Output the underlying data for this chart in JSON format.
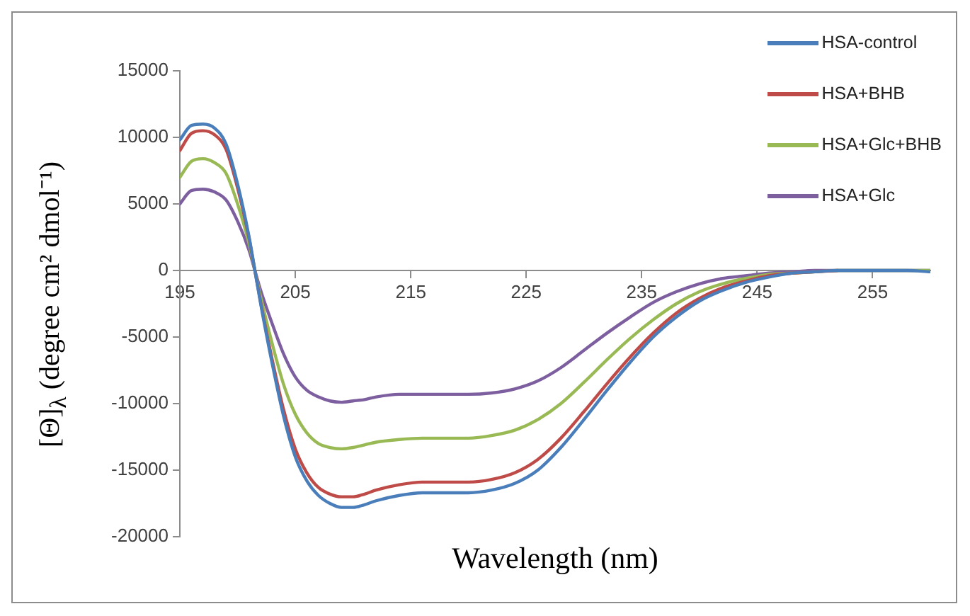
{
  "chart_data": {
    "type": "line",
    "xlabel": "Wavelength  (nm)",
    "ylabel": "[Θ]$_{λ}$ (degree cm² dmol⁻¹)",
    "x": [
      195,
      196,
      197,
      198,
      199,
      200,
      201,
      201.5,
      202,
      203,
      204,
      205,
      206,
      207,
      208,
      209,
      210,
      211,
      212,
      214,
      216,
      218,
      220,
      222,
      224,
      226,
      228,
      230,
      232,
      234,
      236,
      238,
      240,
      242,
      244,
      246,
      248,
      250,
      252,
      255,
      258,
      260
    ],
    "series": [
      {
        "name": "HSA-control",
        "color": "#4a7ebb",
        "values": [
          9800,
          10900,
          11000,
          10700,
          9500,
          6500,
          2500,
          0,
          -2500,
          -7000,
          -11000,
          -14000,
          -15800,
          -16900,
          -17500,
          -17800,
          -17800,
          -17600,
          -17300,
          -16900,
          -16700,
          -16700,
          -16700,
          -16500,
          -16000,
          -15000,
          -13300,
          -11200,
          -9000,
          -6900,
          -5000,
          -3500,
          -2300,
          -1500,
          -900,
          -500,
          -200,
          -100,
          0,
          0,
          0,
          -100
        ]
      },
      {
        "name": "HSA+BHB",
        "color": "#be4b48",
        "values": [
          9000,
          10300,
          10500,
          10200,
          9100,
          6200,
          2400,
          0,
          -2400,
          -6700,
          -10500,
          -13400,
          -15200,
          -16300,
          -16800,
          -17000,
          -17000,
          -16800,
          -16500,
          -16100,
          -15900,
          -15900,
          -15900,
          -15700,
          -15200,
          -14200,
          -12600,
          -10600,
          -8500,
          -6500,
          -4700,
          -3200,
          -2100,
          -1300,
          -800,
          -400,
          -200,
          -100,
          0,
          null,
          null,
          null
        ]
      },
      {
        "name": "HSA+Glc+BHB",
        "color": "#98b954",
        "values": [
          7000,
          8200,
          8400,
          8100,
          7300,
          5000,
          2000,
          0,
          -2000,
          -5500,
          -8600,
          -10800,
          -12200,
          -13000,
          -13300,
          -13400,
          -13300,
          -13100,
          -12900,
          -12700,
          -12600,
          -12600,
          -12600,
          -12400,
          -12000,
          -11200,
          -10000,
          -8400,
          -6700,
          -5100,
          -3700,
          -2500,
          -1600,
          -1000,
          -600,
          -300,
          -200,
          -100,
          0,
          0,
          0,
          0
        ]
      },
      {
        "name": "HSA+Glc",
        "color": "#7d5fa0",
        "values": [
          5000,
          6000,
          6100,
          5900,
          5300,
          3700,
          1500,
          0,
          -1500,
          -4000,
          -6300,
          -8000,
          -9000,
          -9500,
          -9800,
          -9900,
          -9800,
          -9700,
          -9500,
          -9300,
          -9300,
          -9300,
          -9300,
          -9200,
          -8900,
          -8300,
          -7300,
          -6000,
          -4700,
          -3500,
          -2400,
          -1600,
          -1000,
          -600,
          -400,
          -200,
          -100,
          0,
          0,
          0,
          0,
          0
        ]
      }
    ],
    "xlim": [
      195,
      260
    ],
    "xticks": [
      195,
      205,
      215,
      225,
      235,
      245,
      255
    ],
    "ylim": [
      -20000,
      15000
    ],
    "yticks": [
      -20000,
      -15000,
      -10000,
      -5000,
      0,
      5000,
      10000,
      15000
    ],
    "grid": false,
    "legend": "top right",
    "marker": "none",
    "line_style": "solid"
  }
}
